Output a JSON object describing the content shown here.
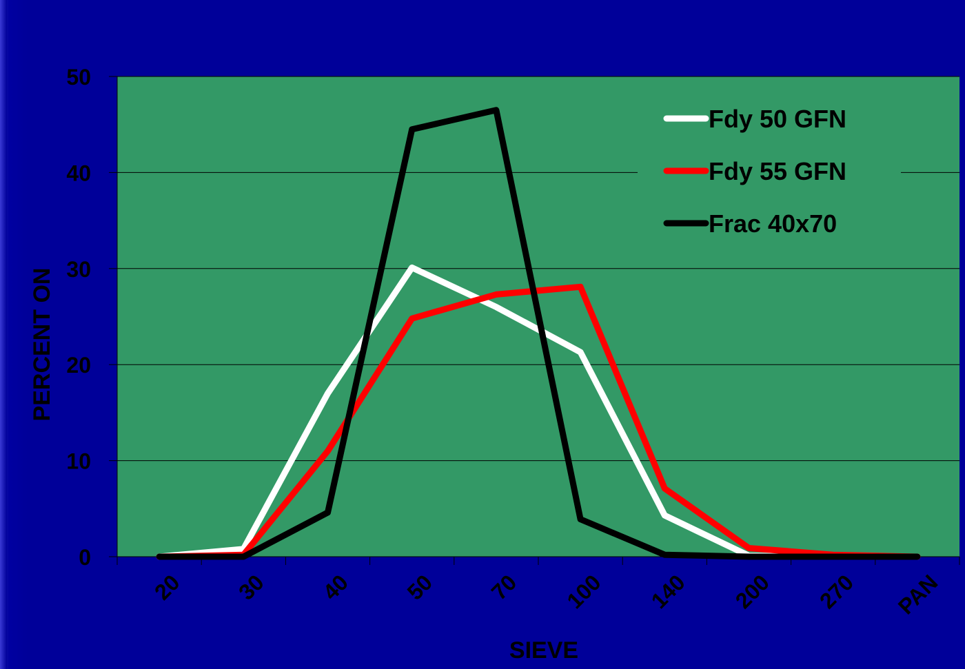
{
  "colors": {
    "slide_background": "#000099",
    "plot_background": "#339966"
  },
  "chart_data": {
    "type": "line",
    "title": "",
    "xlabel": "SIEVE",
    "ylabel": "PERCENT ON",
    "categories": [
      "20",
      "30",
      "40",
      "50",
      "70",
      "100",
      "140",
      "200",
      "270",
      "PAN"
    ],
    "ylim": [
      0,
      50
    ],
    "yticks": [
      "0",
      "10",
      "20",
      "30",
      "40",
      "50"
    ],
    "grid": "horizontal",
    "legend_position": "top-right",
    "series": [
      {
        "name": "Fdy 50 GFN",
        "color": "#ffffff",
        "values": [
          0,
          0.8,
          17,
          30.1,
          26,
          21.3,
          4.3,
          0.1,
          0,
          0
        ]
      },
      {
        "name": "Fdy 55 GFN",
        "color": "#ff0000",
        "values": [
          0,
          0.2,
          11,
          24.8,
          27.3,
          28.1,
          7.1,
          0.9,
          0.2,
          0
        ]
      },
      {
        "name": "Frac 40x70",
        "color": "#000000",
        "values": [
          0,
          0,
          4.6,
          44.5,
          46.5,
          3.9,
          0.2,
          0,
          0,
          0
        ]
      }
    ]
  }
}
